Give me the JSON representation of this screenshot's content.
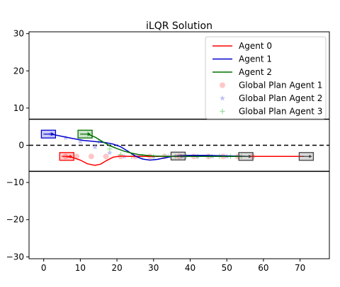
{
  "chart_data": {
    "type": "line",
    "title": "iLQR Solution",
    "xlim": [
      -4,
      78
    ],
    "ylim": [
      -30.5,
      30.5
    ],
    "xticks": [
      0,
      10,
      20,
      30,
      40,
      50,
      60,
      70
    ],
    "yticks": [
      -30,
      -20,
      -10,
      0,
      10,
      20,
      30
    ],
    "xtick_labels": [
      "0",
      "10",
      "20",
      "30",
      "40",
      "50",
      "60",
      "70"
    ],
    "ytick_labels": [
      "−30",
      "−20",
      "−10",
      "0",
      "10",
      "20",
      "30"
    ],
    "lane_boundaries": [
      7,
      -7
    ],
    "center_line": 0,
    "legend_position": "upper-right",
    "series": [
      {
        "name": "Agent 0",
        "color": "#ff0000",
        "kind": "line",
        "x": [
          6,
          8,
          10,
          12,
          14,
          15.5,
          17,
          19,
          21,
          23,
          25,
          27,
          30,
          33,
          37,
          40,
          44,
          50,
          56,
          62,
          66,
          70,
          71
        ],
        "y": [
          -3,
          -3.3,
          -4,
          -5,
          -5.4,
          -5.1,
          -4.2,
          -3.2,
          -2.9,
          -3,
          -3,
          -3,
          -3,
          -3,
          -3,
          -3,
          -3,
          -3,
          -3,
          -3,
          -3,
          -3,
          -3
        ]
      },
      {
        "name": "Agent 1",
        "color": "#0000cc",
        "kind": "line",
        "x": [
          2,
          5,
          8,
          11,
          14,
          17,
          19,
          21,
          23,
          25,
          27,
          29,
          31,
          33,
          35,
          37,
          40,
          44,
          48,
          52,
          56
        ],
        "y": [
          3,
          2.4,
          1.8,
          1.3,
          1,
          0.7,
          0.3,
          -0.4,
          -1.6,
          -2.9,
          -3.7,
          -4,
          -3.8,
          -3.4,
          -3,
          -2.8,
          -2.7,
          -2.7,
          -2.8,
          -2.9,
          -3
        ]
      },
      {
        "name": "Agent 2",
        "color": "#007000",
        "kind": "line",
        "x": [
          12,
          14,
          16,
          18,
          20,
          22,
          24,
          26,
          30,
          34,
          37,
          42,
          48,
          54,
          56
        ],
        "y": [
          3,
          2.2,
          1,
          -0.1,
          -0.9,
          -1.6,
          -2.1,
          -2.5,
          -2.9,
          -3,
          -3,
          -3,
          -3,
          -3,
          -3
        ]
      },
      {
        "name": "Global Plan Agent 1",
        "color": "#ff9999",
        "kind": "scatter-circle",
        "x": [
          6,
          9,
          13,
          17,
          21,
          25,
          29,
          33,
          37,
          41,
          45,
          49,
          53,
          57
        ],
        "y": [
          -3,
          -3,
          -3,
          -3,
          -3,
          -3,
          -3,
          -3,
          -3,
          -3,
          -3,
          -3,
          -3,
          -3
        ]
      },
      {
        "name": "Global Plan Agent 2",
        "color": "#a8a8ee",
        "kind": "scatter-star",
        "x": [
          2,
          6,
          10,
          14,
          18,
          22,
          26,
          30,
          34,
          38,
          42,
          46,
          50
        ],
        "y": [
          3,
          2,
          1,
          -0.5,
          -2,
          -3,
          -3,
          -3,
          -3,
          -3,
          -3,
          -3,
          -3
        ]
      },
      {
        "name": "Global Plan Agent 3",
        "color": "#99dd99",
        "kind": "scatter-plus",
        "x": [
          12,
          15,
          18,
          21,
          24,
          27,
          30,
          33,
          36,
          39,
          42,
          45,
          48,
          51,
          54
        ],
        "y": [
          3,
          1,
          -1,
          -2.5,
          -3,
          -3,
          -3,
          -3,
          -3,
          -3,
          -3,
          -3,
          -3,
          -3,
          -3
        ]
      }
    ],
    "vehicles": [
      {
        "agent": "Agent 0",
        "x": 6.3,
        "y": -3,
        "color": "#ff0000"
      },
      {
        "agent": "Agent 1",
        "x": 1.3,
        "y": 3,
        "color": "#0000cc"
      },
      {
        "agent": "Agent 2",
        "x": 11.3,
        "y": 3,
        "color": "#007000"
      },
      {
        "agent": "Agent 0",
        "x": 36.7,
        "y": -2.9,
        "color": "#444444"
      },
      {
        "agent": "Agent 1",
        "x": 55.2,
        "y": -3,
        "color": "#444444"
      },
      {
        "agent": "Agent 2",
        "x": 71.7,
        "y": -3,
        "color": "#444444"
      }
    ]
  }
}
